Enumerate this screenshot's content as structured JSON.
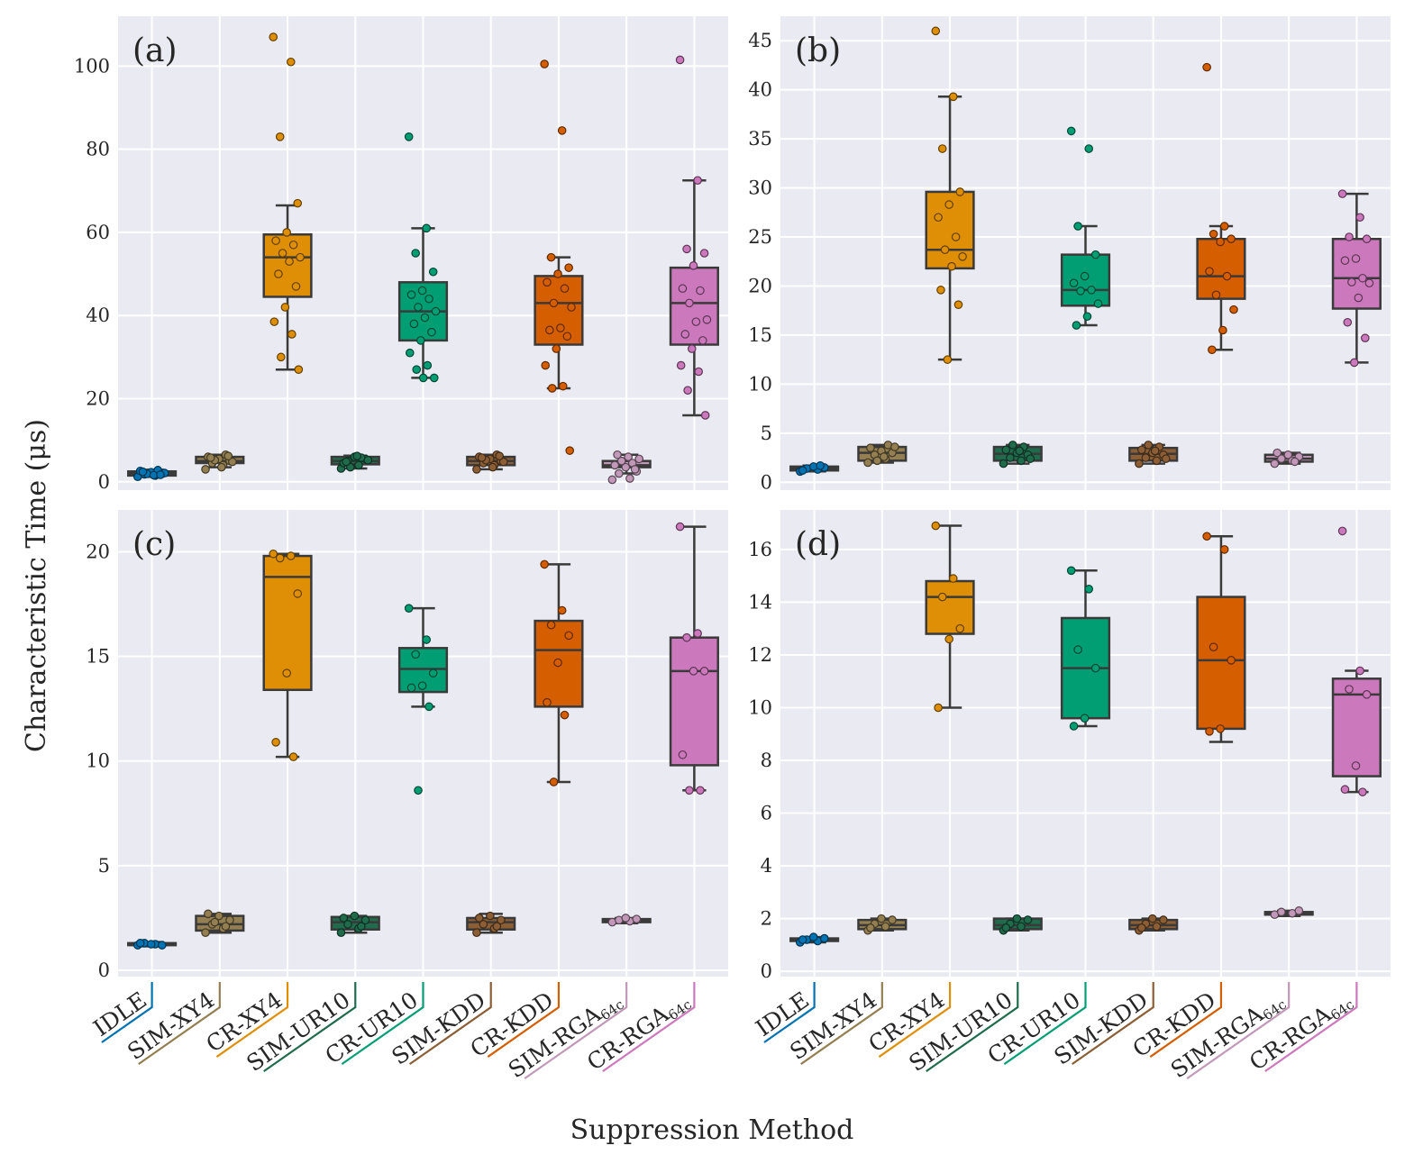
{
  "figure": {
    "xlabel": "Suppression Method",
    "ylabel": "Characteristic Time (μs)",
    "categories": [
      {
        "label": "IDLE",
        "color": "#0173b2"
      },
      {
        "label": "SIM-XY4",
        "color": "#937f51"
      },
      {
        "label": "CR-XY4",
        "color": "#de8f05"
      },
      {
        "label": "SIM-UR10",
        "color": "#1f6b4c"
      },
      {
        "label": "CR-UR10",
        "color": "#029e73"
      },
      {
        "label": "SIM-KDD",
        "color": "#8b5e35"
      },
      {
        "label": "CR-KDD",
        "color": "#d55e00"
      },
      {
        "label": "SIM-RGA",
        "sub": "64c",
        "color": "#c298b8"
      },
      {
        "label": "CR-RGA",
        "sub": "64c",
        "color": "#cc78bc"
      }
    ]
  },
  "chart_data": [
    {
      "type": "box",
      "panel": "(a)",
      "ylim": [
        -2,
        112
      ],
      "yticks": [
        0,
        20,
        40,
        60,
        80,
        100
      ],
      "boxes": [
        {
          "q1": 1.5,
          "median": 2.0,
          "q3": 2.5,
          "whislo": 1.2,
          "whishi": 2.9
        },
        {
          "q1": 4.5,
          "median": 5.0,
          "q3": 6.0,
          "whislo": 3.5,
          "whishi": 6.5
        },
        {
          "q1": 44.5,
          "median": 54.0,
          "q3": 59.5,
          "whislo": 27.0,
          "whishi": 66.5
        },
        {
          "q1": 4.2,
          "median": 5.0,
          "q3": 6.0,
          "whislo": 3.2,
          "whishi": 6.3
        },
        {
          "q1": 34.0,
          "median": 41.0,
          "q3": 48.0,
          "whislo": 25.0,
          "whishi": 61.0
        },
        {
          "q1": 4.0,
          "median": 5.0,
          "q3": 6.0,
          "whislo": 3.0,
          "whishi": 6.5
        },
        {
          "q1": 33.0,
          "median": 43.0,
          "q3": 49.5,
          "whislo": 22.5,
          "whishi": 54.0
        },
        {
          "q1": 3.5,
          "median": 4.0,
          "q3": 5.0,
          "whislo": 2.0,
          "whishi": 6.5
        },
        {
          "q1": 33.0,
          "median": 43.0,
          "q3": 51.5,
          "whislo": 16.0,
          "whishi": 72.5
        }
      ],
      "points": [
        [
          1.2,
          1.5,
          1.8,
          2.0,
          2.3,
          2.6,
          2.8,
          1.9,
          2.1,
          1.6,
          2.4,
          1.7
        ],
        [
          3.0,
          4.0,
          4.5,
          5.0,
          5.5,
          6.0,
          6.5,
          5.2,
          4.8,
          3.5,
          5.8,
          6.2
        ],
        [
          107.0,
          101.0,
          83.0,
          67.0,
          60.0,
          58.0,
          57.0,
          55.0,
          54.0,
          53.0,
          50.0,
          47.0,
          42.0,
          38.5,
          35.5,
          30.0,
          27.0
        ],
        [
          3.2,
          4.0,
          5.0,
          5.5,
          6.0,
          4.5,
          5.8,
          3.5,
          5.2,
          6.2,
          4.8
        ],
        [
          83.0,
          61.0,
          55.0,
          50.5,
          46.0,
          45.0,
          44.0,
          42.0,
          41.0,
          39.5,
          38.0,
          36.0,
          34.0,
          31.0,
          28.0,
          27.0,
          25.0,
          25.0
        ],
        [
          3.0,
          4.0,
          4.5,
          5.0,
          5.5,
          6.0,
          6.5,
          5.2,
          4.8,
          3.5,
          5.8,
          6.2
        ],
        [
          100.5,
          84.5,
          54.0,
          51.5,
          50.0,
          48.0,
          46.5,
          43.0,
          42.0,
          37.0,
          36.5,
          35.0,
          32.0,
          28.0,
          23.0,
          22.5,
          7.5
        ],
        [
          0.5,
          0.8,
          2.0,
          2.5,
          3.5,
          4.0,
          4.5,
          5.0,
          5.5,
          6.0,
          6.5,
          3.0
        ],
        [
          101.5,
          72.5,
          56.0,
          55.0,
          52.0,
          46.5,
          46.0,
          43.0,
          39.0,
          38.5,
          35.5,
          34.0,
          32.0,
          28.0,
          26.5,
          22.0,
          16.0
        ]
      ]
    },
    {
      "type": "box",
      "panel": "(b)",
      "ylim": [
        -0.8,
        47.5
      ],
      "yticks": [
        0,
        5,
        10,
        15,
        20,
        25,
        30,
        35,
        40,
        45
      ],
      "boxes": [
        {
          "q1": 1.2,
          "median": 1.4,
          "q3": 1.6,
          "whislo": 1.1,
          "whishi": 1.7
        },
        {
          "q1": 2.2,
          "median": 3.0,
          "q3": 3.6,
          "whislo": 2.0,
          "whishi": 3.8
        },
        {
          "q1": 21.8,
          "median": 23.7,
          "q3": 29.6,
          "whislo": 12.5,
          "whishi": 39.3
        },
        {
          "q1": 2.2,
          "median": 2.9,
          "q3": 3.6,
          "whislo": 1.9,
          "whishi": 3.8
        },
        {
          "q1": 18.0,
          "median": 19.6,
          "q3": 23.2,
          "whislo": 16.0,
          "whishi": 26.1
        },
        {
          "q1": 2.2,
          "median": 2.9,
          "q3": 3.5,
          "whislo": 1.9,
          "whishi": 3.8
        },
        {
          "q1": 18.7,
          "median": 21.0,
          "q3": 24.8,
          "whislo": 13.5,
          "whishi": 26.1
        },
        {
          "q1": 2.1,
          "median": 2.4,
          "q3": 2.8,
          "whislo": 1.9,
          "whishi": 3.0
        },
        {
          "q1": 17.7,
          "median": 20.8,
          "q3": 24.8,
          "whislo": 12.2,
          "whishi": 29.4
        }
      ],
      "points": [
        [
          1.1,
          1.3,
          1.4,
          1.5,
          1.6,
          1.2,
          1.7
        ],
        [
          2.0,
          2.4,
          2.8,
          3.0,
          3.2,
          3.5,
          3.8,
          2.2,
          3.6,
          2.6
        ],
        [
          46.0,
          39.3,
          34.0,
          29.6,
          28.3,
          27.0,
          25.0,
          23.7,
          23.0,
          22.0,
          19.6,
          18.1,
          12.5
        ],
        [
          1.9,
          2.2,
          2.5,
          2.8,
          3.0,
          3.3,
          3.6,
          3.8,
          2.4,
          3.2
        ],
        [
          35.8,
          34.0,
          26.1,
          23.2,
          21.0,
          20.3,
          19.6,
          19.5,
          18.2,
          16.9,
          16.0
        ],
        [
          1.9,
          2.2,
          2.5,
          2.8,
          3.0,
          3.3,
          3.6,
          3.8,
          2.4,
          3.2
        ],
        [
          42.3,
          26.1,
          25.3,
          24.8,
          24.5,
          21.5,
          21.0,
          19.1,
          17.6,
          15.5,
          13.5
        ],
        [
          1.9,
          2.2,
          2.4,
          2.6,
          2.8,
          3.0,
          2.1
        ],
        [
          29.4,
          27.0,
          25.0,
          24.8,
          22.8,
          22.6,
          20.8,
          20.4,
          20.3,
          18.8,
          16.3,
          14.7,
          12.2
        ]
      ]
    },
    {
      "type": "box",
      "panel": "(c)",
      "ylim": [
        -0.3,
        22
      ],
      "yticks": [
        0,
        5,
        10,
        15,
        20
      ],
      "boxes": [
        {
          "q1": 1.2,
          "median": 1.25,
          "q3": 1.3,
          "whislo": 1.15,
          "whishi": 1.35
        },
        {
          "q1": 1.9,
          "median": 2.2,
          "q3": 2.6,
          "whislo": 1.8,
          "whishi": 2.7
        },
        {
          "q1": 13.4,
          "median": 18.8,
          "q3": 19.8,
          "whislo": 10.2,
          "whishi": 19.9
        },
        {
          "q1": 1.95,
          "median": 2.3,
          "q3": 2.55,
          "whislo": 1.8,
          "whishi": 2.6
        },
        {
          "q1": 13.3,
          "median": 14.4,
          "q3": 15.4,
          "whislo": 12.6,
          "whishi": 17.3
        },
        {
          "q1": 1.95,
          "median": 2.3,
          "q3": 2.5,
          "whislo": 1.8,
          "whishi": 2.7
        },
        {
          "q1": 12.6,
          "median": 15.3,
          "q3": 16.7,
          "whislo": 9.0,
          "whishi": 19.4
        },
        {
          "q1": 2.3,
          "median": 2.4,
          "q3": 2.45,
          "whislo": 2.25,
          "whishi": 2.5
        },
        {
          "q1": 9.8,
          "median": 14.3,
          "q3": 15.9,
          "whislo": 8.6,
          "whishi": 21.2
        }
      ],
      "points": [
        [
          1.2,
          1.25,
          1.3,
          1.2,
          1.25,
          1.3
        ],
        [
          1.8,
          2.0,
          2.2,
          2.4,
          2.6,
          2.7,
          2.1,
          2.3
        ],
        [
          19.9,
          19.8,
          19.7,
          18.0,
          14.2,
          10.9,
          10.2
        ],
        [
          1.8,
          2.0,
          2.2,
          2.4,
          2.6,
          2.5,
          2.1
        ],
        [
          17.3,
          15.8,
          15.1,
          14.2,
          13.6,
          13.5,
          12.6,
          8.6
        ],
        [
          1.8,
          2.0,
          2.2,
          2.4,
          2.6,
          2.5,
          2.1
        ],
        [
          19.4,
          17.2,
          16.5,
          16.0,
          14.7,
          12.8,
          12.2,
          9.0
        ],
        [
          2.3,
          2.35,
          2.4,
          2.45,
          2.5
        ],
        [
          21.2,
          16.1,
          15.9,
          14.3,
          14.3,
          10.3,
          8.6,
          8.6
        ]
      ]
    },
    {
      "type": "box",
      "panel": "(d)",
      "ylim": [
        -0.2,
        17.5
      ],
      "yticks": [
        0,
        2,
        4,
        6,
        8,
        10,
        12,
        14,
        16
      ],
      "boxes": [
        {
          "q1": 1.15,
          "median": 1.2,
          "q3": 1.25,
          "whislo": 1.1,
          "whishi": 1.3
        },
        {
          "q1": 1.6,
          "median": 1.75,
          "q3": 1.95,
          "whislo": 1.55,
          "whishi": 2.0
        },
        {
          "q1": 12.8,
          "median": 14.2,
          "q3": 14.8,
          "whislo": 10.0,
          "whishi": 16.9
        },
        {
          "q1": 1.6,
          "median": 1.75,
          "q3": 2.0,
          "whislo": 1.55,
          "whishi": 2.0
        },
        {
          "q1": 9.6,
          "median": 11.5,
          "q3": 13.4,
          "whislo": 9.3,
          "whishi": 15.2
        },
        {
          "q1": 1.6,
          "median": 1.75,
          "q3": 1.95,
          "whislo": 1.55,
          "whishi": 2.0
        },
        {
          "q1": 9.2,
          "median": 11.8,
          "q3": 14.2,
          "whislo": 8.7,
          "whishi": 16.5
        },
        {
          "q1": 2.15,
          "median": 2.2,
          "q3": 2.25,
          "whislo": 2.1,
          "whishi": 2.3
        },
        {
          "q1": 7.4,
          "median": 10.5,
          "q3": 11.1,
          "whislo": 6.8,
          "whishi": 11.4
        }
      ],
      "points": [
        [
          1.1,
          1.15,
          1.2,
          1.25,
          1.3,
          1.2
        ],
        [
          1.55,
          1.7,
          1.8,
          1.95,
          2.0,
          1.65
        ],
        [
          16.9,
          14.9,
          14.2,
          13.0,
          12.6,
          10.0
        ],
        [
          1.55,
          1.7,
          1.8,
          1.95,
          2.0,
          1.65
        ],
        [
          15.2,
          14.5,
          12.2,
          11.5,
          9.6,
          9.3
        ],
        [
          1.55,
          1.7,
          1.8,
          1.95,
          2.0,
          1.65
        ],
        [
          16.5,
          16.0,
          12.3,
          11.8,
          9.2,
          9.1
        ],
        [
          2.15,
          2.2,
          2.25,
          2.3
        ],
        [
          16.7,
          11.4,
          10.7,
          10.5,
          7.8,
          6.9,
          6.8
        ]
      ]
    }
  ]
}
